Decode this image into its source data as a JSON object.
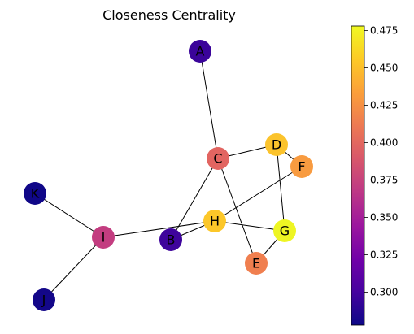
{
  "title": "Closeness Centrality",
  "colormap": {
    "name": "plasma",
    "min": 0.278,
    "max": 0.478,
    "ticks": [
      "0.300",
      "0.325",
      "0.350",
      "0.375",
      "0.400",
      "0.425",
      "0.450",
      "0.475"
    ],
    "stops": [
      "#0d0887",
      "#46039f",
      "#7201a8",
      "#9c179e",
      "#bd3786",
      "#d8576b",
      "#ed7953",
      "#fb9f3a",
      "#fdca26",
      "#f0f921"
    ]
  },
  "nodes": [
    {
      "id": "A",
      "value": 0.29,
      "color": "#3a049a"
    },
    {
      "id": "B",
      "value": 0.3,
      "color": "#3e049c"
    },
    {
      "id": "C",
      "value": 0.41,
      "color": "#e26561"
    },
    {
      "id": "D",
      "value": 0.455,
      "color": "#fbc32c"
    },
    {
      "id": "E",
      "value": 0.415,
      "color": "#f07f4f"
    },
    {
      "id": "F",
      "value": 0.43,
      "color": "#f89b40"
    },
    {
      "id": "G",
      "value": 0.475,
      "color": "#eef523"
    },
    {
      "id": "H",
      "value": 0.455,
      "color": "#fcc729"
    },
    {
      "id": "I",
      "value": 0.37,
      "color": "#c33d80"
    },
    {
      "id": "J",
      "value": 0.28,
      "color": "#130789"
    },
    {
      "id": "K",
      "value": 0.28,
      "color": "#100788"
    }
  ],
  "edges": [
    [
      "A",
      "C"
    ],
    [
      "C",
      "D"
    ],
    [
      "C",
      "B"
    ],
    [
      "C",
      "E"
    ],
    [
      "D",
      "F"
    ],
    [
      "D",
      "G"
    ],
    [
      "F",
      "H"
    ],
    [
      "H",
      "G"
    ],
    [
      "H",
      "B"
    ],
    [
      "G",
      "E"
    ],
    [
      "I",
      "H"
    ],
    [
      "I",
      "K"
    ],
    [
      "I",
      "J"
    ]
  ]
}
